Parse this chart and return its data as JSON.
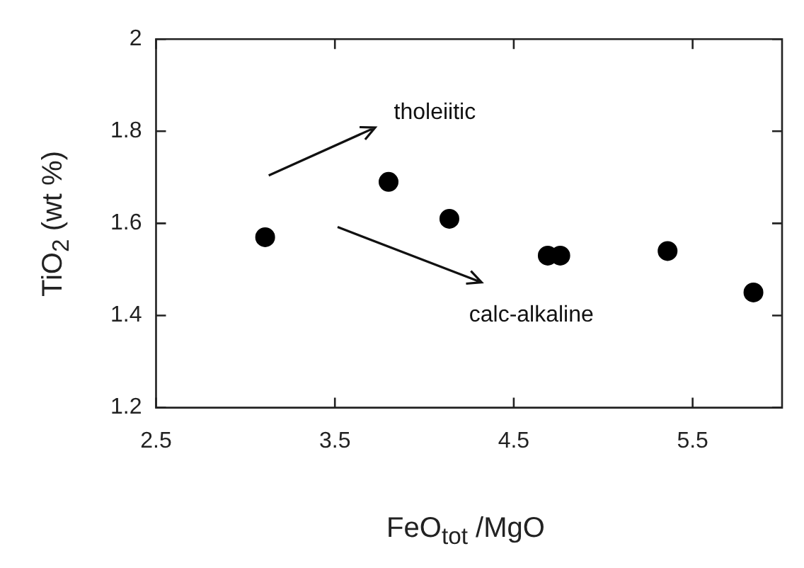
{
  "chart_data": {
    "type": "scatter",
    "xlabel": "FeO$_{tot}$ /MgO",
    "ylabel": "TiO$_{2}$ (wt %)",
    "x": [
      3.11,
      3.8,
      4.14,
      4.69,
      4.76,
      5.36,
      5.84
    ],
    "values": [
      1.57,
      1.69,
      1.61,
      1.53,
      1.53,
      1.54,
      1.45
    ],
    "color": "#000000",
    "marker": "circle",
    "xlim": [
      2.5,
      6.0
    ],
    "xticks": [
      2.5,
      3.5,
      4.5,
      5.5
    ],
    "ylim": [
      1.2,
      2.0
    ],
    "yticks": [
      1.2,
      1.4,
      1.6,
      1.8,
      2
    ],
    "grid": false,
    "legend": false,
    "annotations": [
      "tholeiitic",
      "calc-alkaline"
    ]
  }
}
